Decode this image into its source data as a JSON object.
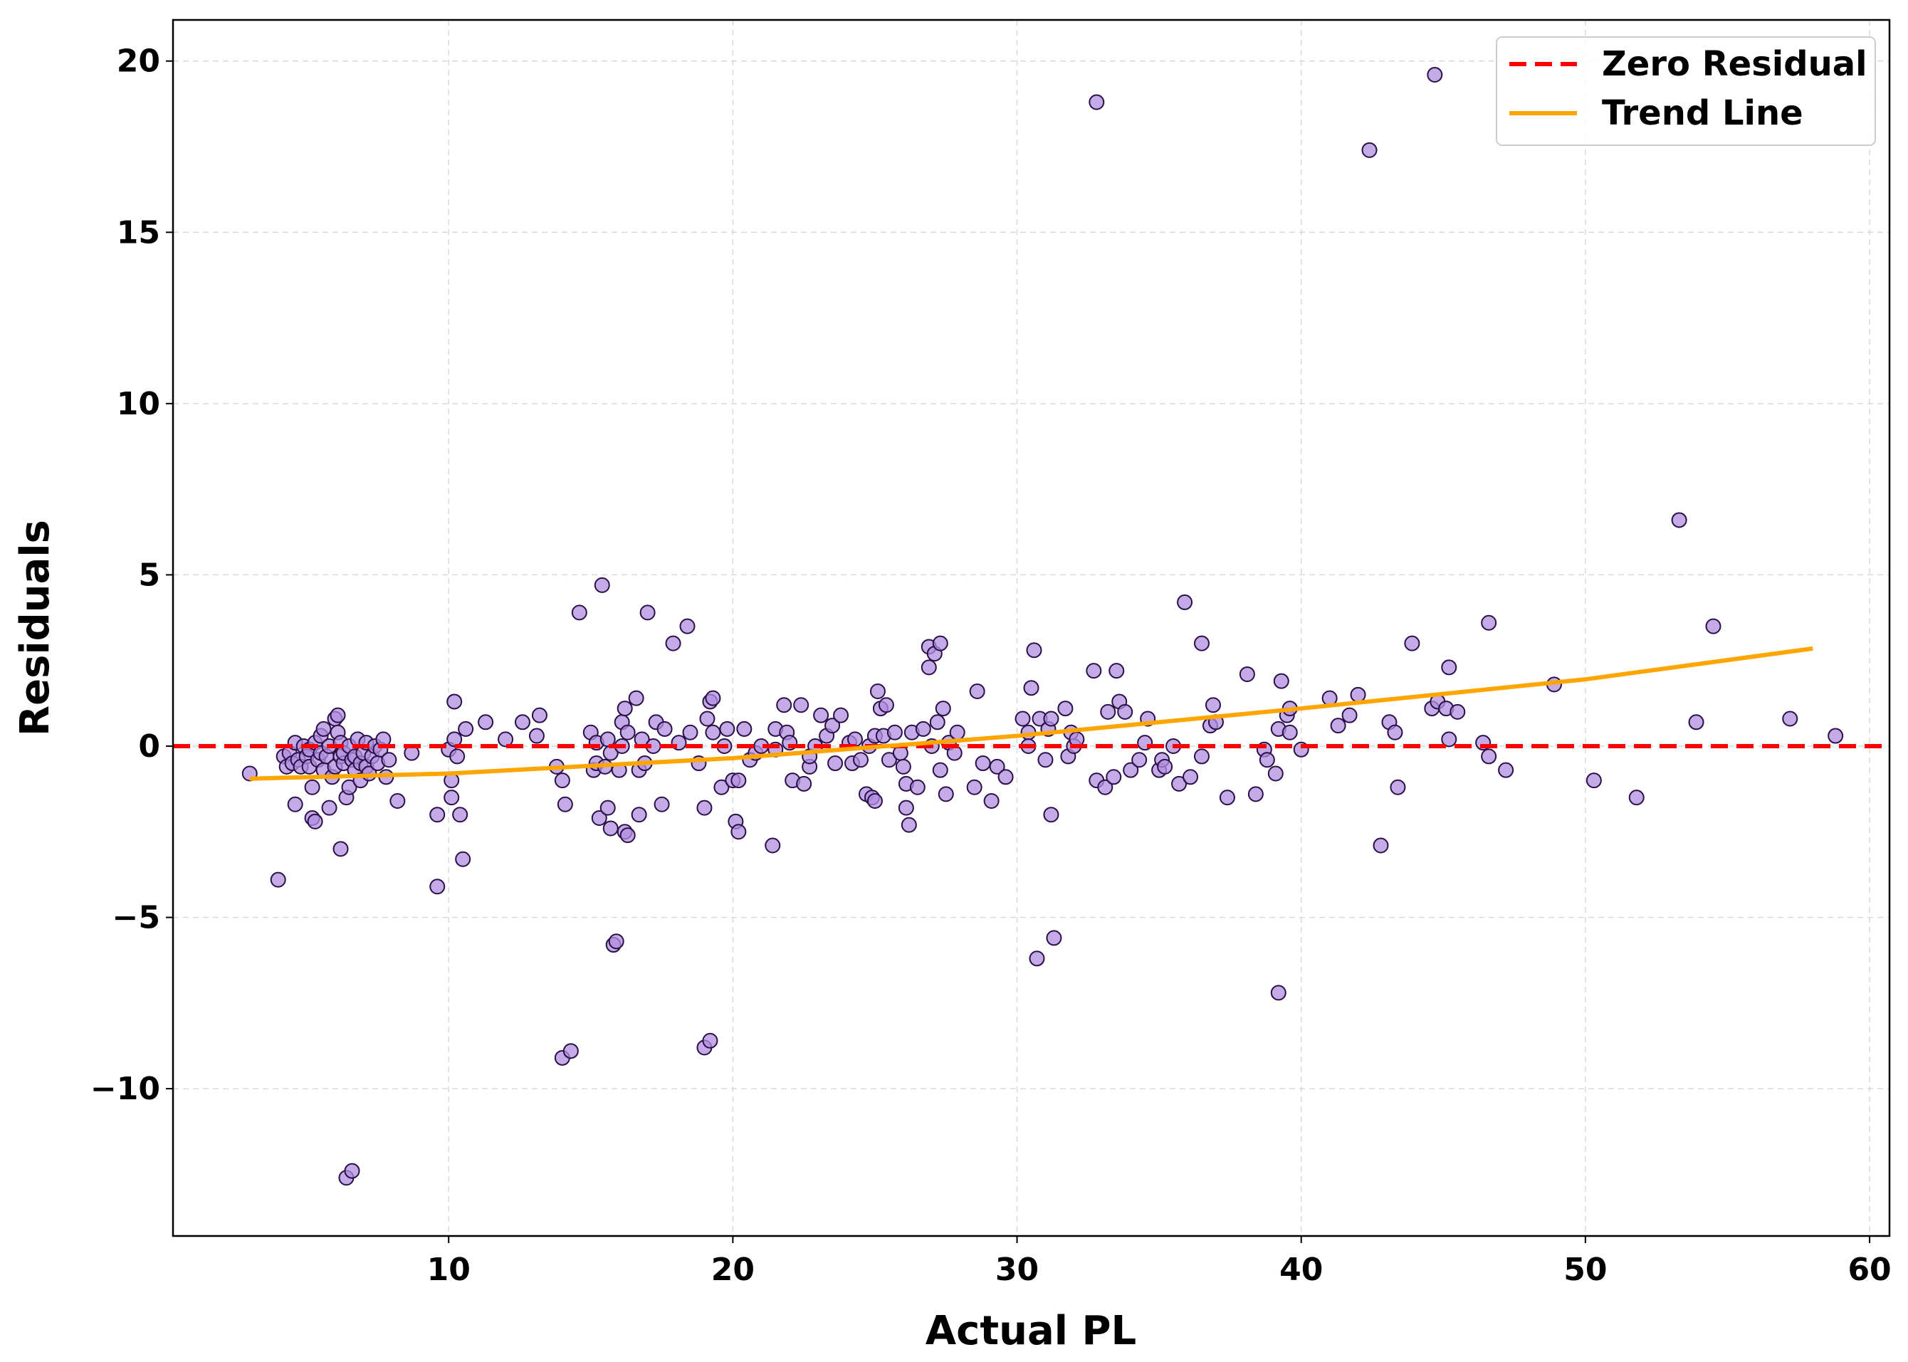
{
  "chart_data": {
    "type": "scatter",
    "title": "",
    "xlabel": "Actual PL",
    "ylabel": "Residuals",
    "xlim": [
      0.3,
      60.7
    ],
    "ylim": [
      -14.3,
      21.2
    ],
    "xticks": [
      10,
      20,
      30,
      40,
      50,
      60
    ],
    "yticks": [
      -10,
      -5,
      0,
      5,
      10,
      15,
      20
    ],
    "xtick_labels": [
      "10",
      "20",
      "30",
      "40",
      "50",
      "60"
    ],
    "ytick_labels": [
      "−10",
      "−5",
      "0",
      "5",
      "10",
      "15",
      "20"
    ],
    "grid": true,
    "legend_position": "top-right",
    "colors": {
      "points": "#b28ee0",
      "point_edge": "#2a1046",
      "zero_line": "#ff0000",
      "trend_line": "#ffa500"
    },
    "legend": [
      {
        "label": "Zero Residual",
        "style": "dashed",
        "color": "#ff0000"
      },
      {
        "label": "Trend Line",
        "style": "solid",
        "color": "#ffa500"
      }
    ],
    "zero_line": {
      "name": "Zero Residual",
      "y": 0
    },
    "trend_line": {
      "name": "Trend Line",
      "points": [
        [
          3.0,
          -0.95
        ],
        [
          10,
          -0.8
        ],
        [
          20,
          -0.35
        ],
        [
          30,
          0.3
        ],
        [
          40,
          1.1
        ],
        [
          50,
          1.95
        ],
        [
          58.0,
          2.85
        ]
      ]
    },
    "series": [
      {
        "name": "Residuals",
        "points": [
          [
            3.0,
            -0.8
          ],
          [
            4.0,
            -3.9
          ],
          [
            4.2,
            -0.3
          ],
          [
            4.3,
            -0.6
          ],
          [
            4.4,
            -0.2
          ],
          [
            4.5,
            -0.5
          ],
          [
            4.6,
            0.1
          ],
          [
            4.6,
            -1.7
          ],
          [
            4.7,
            -0.4
          ],
          [
            4.8,
            -0.6
          ],
          [
            4.9,
            0.0
          ],
          [
            5.0,
            -0.3
          ],
          [
            5.1,
            -0.6
          ],
          [
            5.1,
            -0.1
          ],
          [
            5.2,
            -1.2
          ],
          [
            5.2,
            -2.1
          ],
          [
            5.3,
            -2.2
          ],
          [
            5.3,
            0.1
          ],
          [
            5.4,
            -0.4
          ],
          [
            5.5,
            0.3
          ],
          [
            5.5,
            -0.2
          ],
          [
            5.6,
            0.5
          ],
          [
            5.6,
            -0.7
          ],
          [
            5.7,
            -0.3
          ],
          [
            5.8,
            -1.8
          ],
          [
            5.8,
            0.0
          ],
          [
            5.9,
            -0.9
          ],
          [
            6.0,
            0.8
          ],
          [
            6.0,
            -0.6
          ],
          [
            6.1,
            0.4
          ],
          [
            6.1,
            0.9
          ],
          [
            6.2,
            0.1
          ],
          [
            6.2,
            -0.3
          ],
          [
            6.2,
            -3.0
          ],
          [
            6.3,
            -0.5
          ],
          [
            6.3,
            -0.2
          ],
          [
            6.4,
            -1.5
          ],
          [
            6.4,
            -12.6
          ],
          [
            6.5,
            -1.2
          ],
          [
            6.5,
            0.0
          ],
          [
            6.6,
            -0.4
          ],
          [
            6.6,
            -12.4
          ],
          [
            6.7,
            -0.7
          ],
          [
            6.7,
            -0.3
          ],
          [
            6.8,
            0.2
          ],
          [
            6.9,
            -1.0
          ],
          [
            6.9,
            -0.5
          ],
          [
            7.0,
            -0.2
          ],
          [
            7.1,
            0.1
          ],
          [
            7.1,
            -0.6
          ],
          [
            7.2,
            -0.8
          ],
          [
            7.3,
            -0.3
          ],
          [
            7.4,
            0.0
          ],
          [
            7.5,
            -0.5
          ],
          [
            7.6,
            -0.1
          ],
          [
            7.7,
            0.2
          ],
          [
            7.8,
            -0.9
          ],
          [
            7.9,
            -0.4
          ],
          [
            8.2,
            -1.6
          ],
          [
            8.7,
            -0.2
          ],
          [
            9.6,
            -2.0
          ],
          [
            9.6,
            -4.1
          ],
          [
            10.0,
            -0.1
          ],
          [
            10.1,
            -1.0
          ],
          [
            10.1,
            -1.5
          ],
          [
            10.2,
            1.3
          ],
          [
            10.2,
            0.2
          ],
          [
            10.3,
            -0.3
          ],
          [
            10.4,
            -2.0
          ],
          [
            10.5,
            -3.3
          ],
          [
            10.6,
            0.5
          ],
          [
            11.3,
            0.7
          ],
          [
            12.0,
            0.2
          ],
          [
            12.6,
            0.7
          ],
          [
            13.1,
            0.3
          ],
          [
            13.2,
            0.9
          ],
          [
            13.8,
            -0.6
          ],
          [
            14.0,
            -9.1
          ],
          [
            14.0,
            -1.0
          ],
          [
            14.1,
            -1.7
          ],
          [
            14.3,
            -8.9
          ],
          [
            14.6,
            3.9
          ],
          [
            15.0,
            0.4
          ],
          [
            15.1,
            -0.7
          ],
          [
            15.2,
            0.1
          ],
          [
            15.2,
            -0.5
          ],
          [
            15.3,
            -2.1
          ],
          [
            15.4,
            4.7
          ],
          [
            15.5,
            -0.6
          ],
          [
            15.6,
            -1.8
          ],
          [
            15.6,
            0.2
          ],
          [
            15.7,
            -2.4
          ],
          [
            15.7,
            -0.2
          ],
          [
            15.8,
            -5.8
          ],
          [
            15.9,
            -5.7
          ],
          [
            16.0,
            -0.7
          ],
          [
            16.1,
            0.0
          ],
          [
            16.1,
            0.7
          ],
          [
            16.2,
            -2.5
          ],
          [
            16.2,
            1.1
          ],
          [
            16.3,
            -2.6
          ],
          [
            16.3,
            0.4
          ],
          [
            16.6,
            1.4
          ],
          [
            16.7,
            -2.0
          ],
          [
            16.7,
            -0.7
          ],
          [
            16.8,
            0.2
          ],
          [
            16.9,
            -0.5
          ],
          [
            17.0,
            3.9
          ],
          [
            17.2,
            0.0
          ],
          [
            17.3,
            0.7
          ],
          [
            17.5,
            -1.7
          ],
          [
            17.6,
            0.5
          ],
          [
            17.9,
            3.0
          ],
          [
            18.1,
            0.1
          ],
          [
            18.4,
            3.5
          ],
          [
            18.5,
            0.4
          ],
          [
            18.8,
            -0.5
          ],
          [
            19.0,
            -8.8
          ],
          [
            19.0,
            -1.8
          ],
          [
            19.1,
            0.8
          ],
          [
            19.2,
            -8.6
          ],
          [
            19.2,
            1.3
          ],
          [
            19.3,
            1.4
          ],
          [
            19.3,
            0.4
          ],
          [
            19.6,
            -1.2
          ],
          [
            19.7,
            0.0
          ],
          [
            19.8,
            0.5
          ],
          [
            20.0,
            -1.0
          ],
          [
            20.1,
            -2.2
          ],
          [
            20.2,
            -2.5
          ],
          [
            20.2,
            -1.0
          ],
          [
            20.4,
            0.5
          ],
          [
            20.6,
            -0.4
          ],
          [
            20.8,
            -0.2
          ],
          [
            21.0,
            0.0
          ],
          [
            21.4,
            -2.9
          ],
          [
            21.5,
            0.5
          ],
          [
            21.5,
            -0.1
          ],
          [
            21.8,
            1.2
          ],
          [
            21.9,
            0.4
          ],
          [
            22.0,
            0.1
          ],
          [
            22.1,
            -1.0
          ],
          [
            22.4,
            1.2
          ],
          [
            22.5,
            -1.1
          ],
          [
            22.7,
            -0.6
          ],
          [
            22.7,
            -0.3
          ],
          [
            22.9,
            0.0
          ],
          [
            23.1,
            0.9
          ],
          [
            23.3,
            0.3
          ],
          [
            23.5,
            0.6
          ],
          [
            23.6,
            -0.5
          ],
          [
            23.8,
            0.9
          ],
          [
            24.1,
            0.1
          ],
          [
            24.2,
            -0.5
          ],
          [
            24.3,
            0.2
          ],
          [
            24.5,
            -0.4
          ],
          [
            24.7,
            -1.4
          ],
          [
            24.8,
            0.0
          ],
          [
            24.9,
            -1.5
          ],
          [
            25.0,
            -1.6
          ],
          [
            25.0,
            0.3
          ],
          [
            25.1,
            1.6
          ],
          [
            25.2,
            1.1
          ],
          [
            25.3,
            0.3
          ],
          [
            25.4,
            1.2
          ],
          [
            25.5,
            -0.4
          ],
          [
            25.7,
            0.4
          ],
          [
            25.9,
            -0.2
          ],
          [
            26.0,
            -0.6
          ],
          [
            26.1,
            -1.8
          ],
          [
            26.1,
            -1.1
          ],
          [
            26.2,
            -2.3
          ],
          [
            26.3,
            0.4
          ],
          [
            26.5,
            -1.2
          ],
          [
            26.7,
            0.5
          ],
          [
            26.9,
            2.9
          ],
          [
            26.9,
            2.3
          ],
          [
            27.0,
            0.0
          ],
          [
            27.1,
            2.7
          ],
          [
            27.2,
            0.7
          ],
          [
            27.3,
            -0.7
          ],
          [
            27.3,
            3.0
          ],
          [
            27.4,
            1.1
          ],
          [
            27.5,
            -1.4
          ],
          [
            27.6,
            0.1
          ],
          [
            27.8,
            -0.2
          ],
          [
            27.9,
            0.4
          ],
          [
            28.5,
            -1.2
          ],
          [
            28.6,
            1.6
          ],
          [
            28.8,
            -0.5
          ],
          [
            29.1,
            -1.6
          ],
          [
            29.3,
            -0.6
          ],
          [
            29.6,
            -0.9
          ],
          [
            30.2,
            0.8
          ],
          [
            30.4,
            0.4
          ],
          [
            30.4,
            0.0
          ],
          [
            30.5,
            1.7
          ],
          [
            30.6,
            2.8
          ],
          [
            30.7,
            -6.2
          ],
          [
            30.8,
            0.8
          ],
          [
            31.0,
            -0.4
          ],
          [
            31.1,
            0.5
          ],
          [
            31.2,
            -2.0
          ],
          [
            31.2,
            0.8
          ],
          [
            31.3,
            -5.6
          ],
          [
            31.7,
            1.1
          ],
          [
            31.8,
            -0.3
          ],
          [
            31.9,
            0.4
          ],
          [
            32.0,
            0.0
          ],
          [
            32.1,
            0.2
          ],
          [
            32.7,
            2.2
          ],
          [
            32.8,
            -1.0
          ],
          [
            32.8,
            18.8
          ],
          [
            33.1,
            -1.2
          ],
          [
            33.2,
            1.0
          ],
          [
            33.4,
            -0.9
          ],
          [
            33.5,
            2.2
          ],
          [
            33.6,
            1.3
          ],
          [
            33.8,
            1.0
          ],
          [
            34.0,
            -0.7
          ],
          [
            34.3,
            -0.4
          ],
          [
            34.5,
            0.1
          ],
          [
            34.6,
            0.8
          ],
          [
            35.0,
            -0.7
          ],
          [
            35.1,
            -0.4
          ],
          [
            35.2,
            -0.6
          ],
          [
            35.5,
            0.0
          ],
          [
            35.7,
            -1.1
          ],
          [
            35.9,
            4.2
          ],
          [
            36.1,
            -0.9
          ],
          [
            36.5,
            3.0
          ],
          [
            36.5,
            -0.3
          ],
          [
            36.8,
            0.6
          ],
          [
            36.9,
            1.2
          ],
          [
            37.0,
            0.7
          ],
          [
            37.4,
            -1.5
          ],
          [
            38.1,
            2.1
          ],
          [
            38.4,
            -1.4
          ],
          [
            38.7,
            -0.1
          ],
          [
            38.8,
            -0.4
          ],
          [
            39.1,
            -0.8
          ],
          [
            39.2,
            -7.2
          ],
          [
            39.2,
            0.5
          ],
          [
            39.3,
            1.9
          ],
          [
            39.5,
            0.9
          ],
          [
            39.6,
            0.4
          ],
          [
            39.6,
            1.1
          ],
          [
            40.0,
            -0.1
          ],
          [
            41.0,
            1.4
          ],
          [
            41.3,
            0.6
          ],
          [
            41.7,
            0.9
          ],
          [
            42.0,
            1.5
          ],
          [
            42.4,
            17.4
          ],
          [
            42.8,
            -2.9
          ],
          [
            43.1,
            0.7
          ],
          [
            43.3,
            0.4
          ],
          [
            43.4,
            -1.2
          ],
          [
            43.9,
            3.0
          ],
          [
            44.6,
            1.1
          ],
          [
            44.7,
            19.6
          ],
          [
            44.8,
            1.3
          ],
          [
            45.1,
            1.1
          ],
          [
            45.2,
            0.2
          ],
          [
            45.2,
            2.3
          ],
          [
            45.5,
            1.0
          ],
          [
            46.4,
            0.1
          ],
          [
            46.6,
            -0.3
          ],
          [
            46.6,
            3.6
          ],
          [
            47.2,
            -0.7
          ],
          [
            48.9,
            1.8
          ],
          [
            50.3,
            -1.0
          ],
          [
            51.8,
            -1.5
          ],
          [
            53.3,
            6.6
          ],
          [
            53.9,
            0.7
          ],
          [
            54.5,
            3.5
          ],
          [
            57.2,
            0.8
          ],
          [
            58.8,
            0.3
          ]
        ]
      }
    ]
  }
}
